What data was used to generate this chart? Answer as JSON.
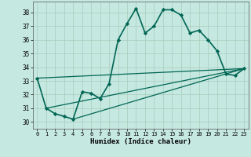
{
  "xlabel": "Humidex (Indice chaleur)",
  "bg_color": "#c5e8e0",
  "grid_color": "#aaccbb",
  "line_color": "#006655",
  "xlim": [
    -0.5,
    23.5
  ],
  "ylim": [
    29.5,
    38.8
  ],
  "xticks": [
    0,
    1,
    2,
    3,
    4,
    5,
    6,
    7,
    8,
    9,
    10,
    11,
    12,
    13,
    14,
    15,
    16,
    17,
    18,
    19,
    20,
    21,
    22,
    23
  ],
  "yticks": [
    30,
    31,
    32,
    33,
    34,
    35,
    36,
    37,
    38
  ],
  "main_x": [
    0,
    1,
    2,
    3,
    4,
    5,
    6,
    7,
    8,
    9,
    10,
    11,
    12,
    13,
    14,
    15,
    16,
    17,
    18,
    19,
    20,
    21,
    22,
    23
  ],
  "main_y": [
    33.2,
    31.0,
    30.6,
    30.4,
    30.2,
    32.2,
    32.1,
    31.7,
    32.8,
    36.0,
    37.2,
    38.3,
    36.5,
    37.0,
    38.2,
    38.2,
    37.8,
    36.5,
    36.7,
    36.0,
    35.2,
    33.5,
    33.4,
    33.9
  ],
  "line1_x": [
    0,
    23
  ],
  "line1_y": [
    33.2,
    33.9
  ],
  "line2_x": [
    1,
    23
  ],
  "line2_y": [
    31.0,
    33.9
  ],
  "line3_x": [
    4,
    23
  ],
  "line3_y": [
    30.2,
    33.9
  ]
}
